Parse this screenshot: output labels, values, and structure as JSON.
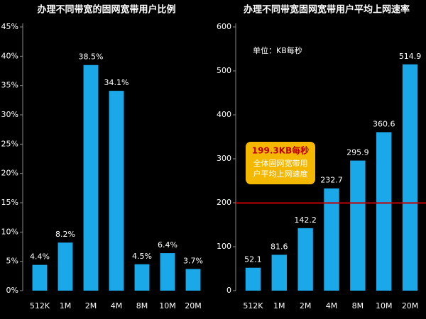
{
  "chart_data": [
    {
      "type": "bar",
      "title": "办理不同带宽的固网宽带用户比例",
      "categories": [
        "512K",
        "1M",
        "2M",
        "4M",
        "8M",
        "10M",
        "20M"
      ],
      "values": [
        4.4,
        8.2,
        38.5,
        34.1,
        4.5,
        6.4,
        3.7
      ],
      "value_labels": [
        "4.4%",
        "8.2%",
        "38.5%",
        "34.1%",
        "4.5%",
        "6.4%",
        "3.7%"
      ],
      "color": "#1ba8e8",
      "ylim": [
        0,
        45
      ],
      "yticks": [
        {
          "value": 0,
          "label": "0%"
        },
        {
          "value": 5,
          "label": "5%"
        },
        {
          "value": 10,
          "label": "10%"
        },
        {
          "value": 15,
          "label": "15%"
        },
        {
          "value": 20,
          "label": "20%"
        },
        {
          "value": 25,
          "label": "25%"
        },
        {
          "value": 30,
          "label": "30%"
        },
        {
          "value": 35,
          "label": "35%"
        },
        {
          "value": 40,
          "label": "40%"
        },
        {
          "value": 45,
          "label": "45%"
        }
      ]
    },
    {
      "type": "bar",
      "title": "办理不同带宽固网宽带用户平均上网速率",
      "subtitle": "单位：KB每秒",
      "categories": [
        "512K",
        "1M",
        "2M",
        "4M",
        "8M",
        "10M",
        "20M"
      ],
      "values": [
        52.1,
        81.6,
        142.2,
        232.7,
        295.9,
        360.6,
        514.9
      ],
      "color": "#1ba8e8",
      "ylim": [
        0,
        600
      ],
      "yticks": [
        0,
        100,
        200,
        300,
        400,
        500,
        600
      ],
      "reference_line": {
        "value": 199.3,
        "label": "199.3KB每秒",
        "color": "#c00000",
        "annotation": [
          "全体固网宽带用",
          "户平均上网速度"
        ]
      }
    }
  ]
}
